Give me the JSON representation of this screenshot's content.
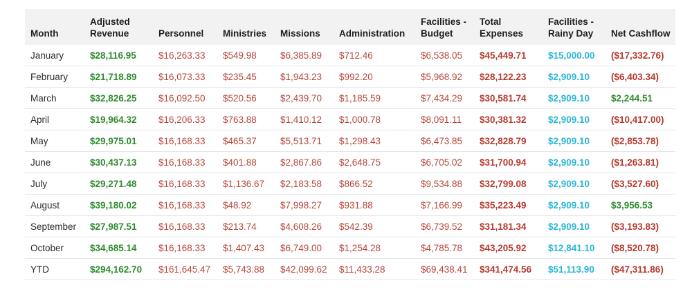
{
  "columns": [
    "Month",
    "Adjusted Revenue",
    "Personnel",
    "Ministries",
    "Missions",
    "Administration",
    "Facilities - Budget",
    "Total Expenses",
    "Facilities - Rainy Day",
    "Net Cashflow"
  ],
  "rows": [
    [
      "January",
      "$28,116.95",
      "$16,263.33",
      "$549.98",
      "$6,385.89",
      "$712.46",
      "$6,538.05",
      "$45,449.71",
      "$15,000.00",
      "($17,332.76)"
    ],
    [
      "February",
      "$21,718.89",
      "$16,073.33",
      "$235.45",
      "$1,943.23",
      "$992.20",
      "$5,968.92",
      "$28,122.23",
      "$2,909.10",
      "($6,403.34)"
    ],
    [
      "March",
      "$32,826.25",
      "$16,092.50",
      "$520.56",
      "$2,439.70",
      "$1,185.59",
      "$7,434.29",
      "$30,581.74",
      "$2,909.10",
      "$2,244.51"
    ],
    [
      "April",
      "$19,964.32",
      "$16,206.33",
      "$763.88",
      "$1,410.12",
      "$1,000.78",
      "$8,091.11",
      "$30,381.32",
      "$2,909.10",
      "($10,417.00)"
    ],
    [
      "May",
      "$29,975.01",
      "$16,168.33",
      "$465.37",
      "$5,513.71",
      "$1,298.43",
      "$6,473.85",
      "$32,828.79",
      "$2,909.10",
      "($2,853.78)"
    ],
    [
      "June",
      "$30,437.13",
      "$16,168.33",
      "$401.88",
      "$2,867.86",
      "$2,648.75",
      "$6,705.02",
      "$31,700.94",
      "$2,909.10",
      "($1,263.81)"
    ],
    [
      "July",
      "$29,271.48",
      "$16,168.33",
      "$1,136.67",
      "$2,183.58",
      "$866.52",
      "$9,534.88",
      "$32,799.08",
      "$2,909.10",
      "($3,527.60)"
    ],
    [
      "August",
      "$39,180.02",
      "$16,168.33",
      "$48.92",
      "$7,998.27",
      "$931.88",
      "$7,166.99",
      "$35,223.49",
      "$2,909.10",
      "$3,956.53"
    ],
    [
      "September",
      "$27,987.51",
      "$16,168.33",
      "$213.74",
      "$4,608.26",
      "$542.39",
      "$6,739.52",
      "$31,181.34",
      "$2,909.10",
      "($3,193.83)"
    ],
    [
      "October",
      "$34,685.14",
      "$16,168.33",
      "$1,407.43",
      "$6,749.00",
      "$1,254.28",
      "$4,785.78",
      "$43,205.92",
      "$12,841.10",
      "($8,520.78)"
    ],
    [
      "YTD",
      "$294,162.70",
      "$161,645.47",
      "$5,743.88",
      "$42,099.62",
      "$11,433.28",
      "$69,438.41",
      "$341,474.56",
      "$51,113.90",
      "($47,311.86)"
    ]
  ],
  "colors": {
    "revenue": "#2e8b2e",
    "expense": "#b5473a",
    "total": "#b53a2e",
    "rainy_day": "#2cb6d6",
    "net_positive": "#2e8b2e",
    "net_negative": "#b53a2e",
    "header_bg": "#f2f2f2"
  }
}
